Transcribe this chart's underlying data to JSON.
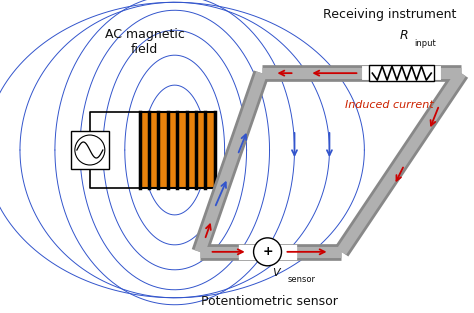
{
  "bg_color": "#ffffff",
  "ac_field_label": "AC magnetic\nfield",
  "receiving_label": "Receiving instrument",
  "r_input_label": "R",
  "r_input_sub": "input",
  "induced_current_label": "Induced current",
  "v_sensor_label": "V",
  "v_sensor_sub": "sensor",
  "potentiometric_label": "Potentiometric sensor",
  "solenoid_color": "#E8820C",
  "cable_color": "#b0b0b0",
  "cable_edge": "#888888",
  "field_line_color": "#3355cc",
  "arrow_red": "#cc0000",
  "arrow_blue": "#3355cc",
  "text_black": "#111111",
  "text_red": "#cc2200"
}
